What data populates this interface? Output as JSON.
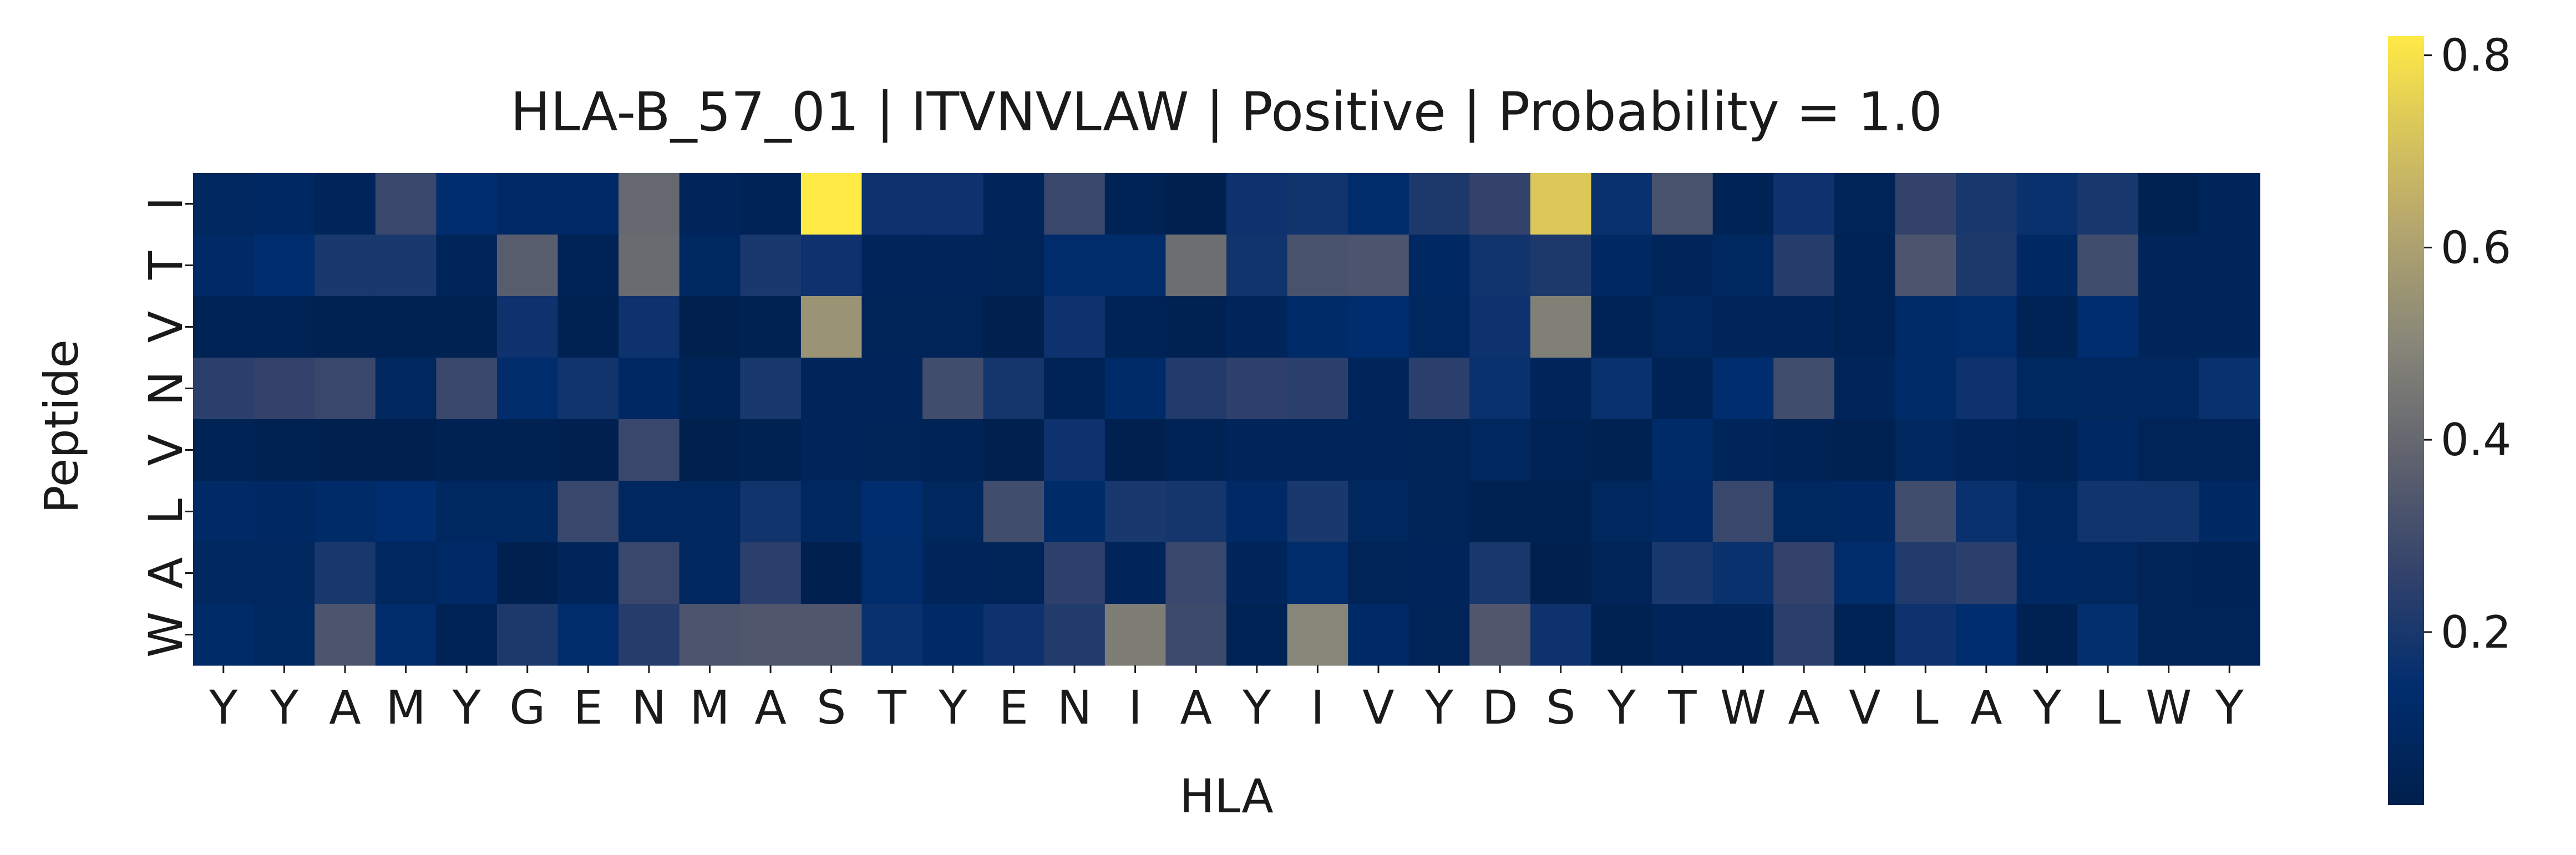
{
  "chart_data": {
    "type": "heatmap",
    "title": "HLA-B_57_01 | ITVNVLAW | Positive | Probability = 1.0",
    "xlabel": "HLA",
    "ylabel": "Peptide",
    "x_categories": [
      "Y",
      "Y",
      "A",
      "M",
      "Y",
      "G",
      "E",
      "N",
      "M",
      "A",
      "S",
      "T",
      "Y",
      "E",
      "N",
      "I",
      "A",
      "Y",
      "I",
      "V",
      "Y",
      "D",
      "S",
      "Y",
      "T",
      "W",
      "A",
      "V",
      "L",
      "A",
      "Y",
      "L",
      "W",
      "Y"
    ],
    "y_categories": [
      "I",
      "T",
      "V",
      "N",
      "V",
      "L",
      "A",
      "W"
    ],
    "values": [
      [
        0.08,
        0.1,
        0.07,
        0.28,
        0.14,
        0.11,
        0.11,
        0.4,
        0.07,
        0.05,
        0.82,
        0.17,
        0.17,
        0.07,
        0.28,
        0.05,
        0.03,
        0.17,
        0.18,
        0.13,
        0.21,
        0.26,
        0.73,
        0.16,
        0.32,
        0.05,
        0.17,
        0.06,
        0.26,
        0.2,
        0.16,
        0.2,
        0.04,
        0.07
      ],
      [
        0.11,
        0.14,
        0.2,
        0.2,
        0.07,
        0.36,
        0.05,
        0.41,
        0.09,
        0.2,
        0.17,
        0.07,
        0.07,
        0.06,
        0.13,
        0.13,
        0.42,
        0.18,
        0.32,
        0.33,
        0.1,
        0.18,
        0.21,
        0.1,
        0.07,
        0.09,
        0.23,
        0.05,
        0.33,
        0.21,
        0.1,
        0.3,
        0.07,
        0.07
      ],
      [
        0.05,
        0.05,
        0.04,
        0.04,
        0.04,
        0.17,
        0.04,
        0.17,
        0.02,
        0.04,
        0.55,
        0.06,
        0.06,
        0.02,
        0.17,
        0.05,
        0.04,
        0.07,
        0.12,
        0.14,
        0.08,
        0.17,
        0.48,
        0.05,
        0.08,
        0.07,
        0.07,
        0.05,
        0.12,
        0.13,
        0.05,
        0.14,
        0.07,
        0.07
      ],
      [
        0.24,
        0.26,
        0.28,
        0.08,
        0.28,
        0.13,
        0.18,
        0.1,
        0.05,
        0.2,
        0.07,
        0.07,
        0.3,
        0.19,
        0.05,
        0.12,
        0.22,
        0.25,
        0.24,
        0.07,
        0.24,
        0.16,
        0.07,
        0.16,
        0.05,
        0.14,
        0.3,
        0.07,
        0.12,
        0.17,
        0.09,
        0.08,
        0.08,
        0.16
      ],
      [
        0.05,
        0.04,
        0.03,
        0.03,
        0.04,
        0.04,
        0.03,
        0.28,
        0.02,
        0.04,
        0.07,
        0.06,
        0.05,
        0.03,
        0.17,
        0.03,
        0.05,
        0.07,
        0.07,
        0.07,
        0.06,
        0.08,
        0.05,
        0.04,
        0.12,
        0.07,
        0.05,
        0.04,
        0.08,
        0.07,
        0.05,
        0.1,
        0.06,
        0.06
      ],
      [
        0.11,
        0.1,
        0.12,
        0.14,
        0.09,
        0.09,
        0.28,
        0.08,
        0.08,
        0.18,
        0.08,
        0.14,
        0.08,
        0.3,
        0.12,
        0.2,
        0.19,
        0.11,
        0.2,
        0.08,
        0.06,
        0.04,
        0.04,
        0.08,
        0.11,
        0.28,
        0.09,
        0.1,
        0.3,
        0.16,
        0.08,
        0.18,
        0.18,
        0.1
      ],
      [
        0.08,
        0.08,
        0.2,
        0.08,
        0.11,
        0.03,
        0.07,
        0.28,
        0.08,
        0.24,
        0.03,
        0.13,
        0.07,
        0.06,
        0.25,
        0.07,
        0.28,
        0.07,
        0.13,
        0.06,
        0.07,
        0.2,
        0.02,
        0.06,
        0.2,
        0.16,
        0.26,
        0.13,
        0.22,
        0.24,
        0.1,
        0.08,
        0.06,
        0.05
      ],
      [
        0.12,
        0.09,
        0.33,
        0.13,
        0.05,
        0.21,
        0.13,
        0.23,
        0.33,
        0.34,
        0.34,
        0.16,
        0.11,
        0.17,
        0.22,
        0.47,
        0.29,
        0.05,
        0.5,
        0.11,
        0.06,
        0.34,
        0.17,
        0.04,
        0.07,
        0.07,
        0.24,
        0.05,
        0.17,
        0.14,
        0.04,
        0.15,
        0.06,
        0.06
      ]
    ],
    "color_scale": {
      "name": "cividis",
      "vmin": 0.02,
      "vmax": 0.82,
      "ticks": [
        0.2,
        0.4,
        0.6,
        0.8
      ]
    },
    "colorbar_tick_labels": [
      "0.2",
      "0.4",
      "0.6",
      "0.8"
    ],
    "legend": "colorbar-right",
    "grid": false
  }
}
